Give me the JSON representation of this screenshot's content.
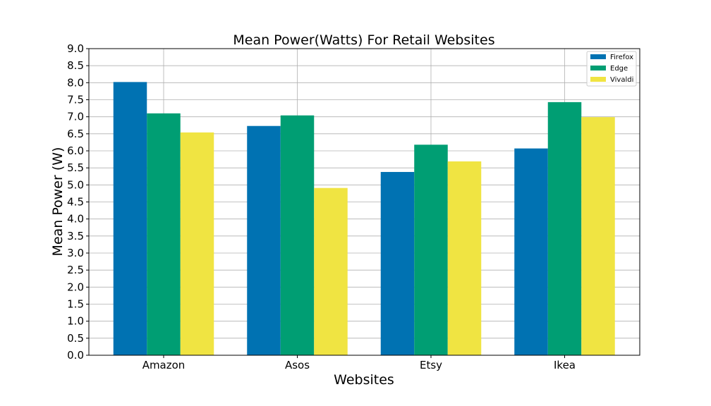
{
  "chart_data": {
    "type": "bar",
    "title": "Mean Power(Watts) For Retail Websites",
    "xlabel": "Websites",
    "ylabel": "Mean Power (W)",
    "categories": [
      "Amazon",
      "Asos",
      "Etsy",
      "Ikea"
    ],
    "series": [
      {
        "name": "Firefox",
        "color": "#0072b2",
        "values": [
          8.02,
          6.73,
          5.38,
          6.07
        ]
      },
      {
        "name": "Edge",
        "color": "#009e73",
        "values": [
          7.1,
          7.04,
          6.18,
          7.43
        ]
      },
      {
        "name": "Vivaldi",
        "color": "#f0e442",
        "values": [
          6.54,
          4.91,
          5.69,
          6.99
        ]
      }
    ],
    "ylim": [
      0,
      9.0
    ],
    "yticks": [
      "0.0",
      "0.5",
      "1.0",
      "1.5",
      "2.0",
      "2.5",
      "3.0",
      "3.5",
      "4.0",
      "4.5",
      "5.0",
      "5.5",
      "6.0",
      "6.5",
      "7.0",
      "7.5",
      "8.0",
      "8.5",
      "9.0"
    ],
    "grid": true,
    "legend_position": "top-right"
  }
}
